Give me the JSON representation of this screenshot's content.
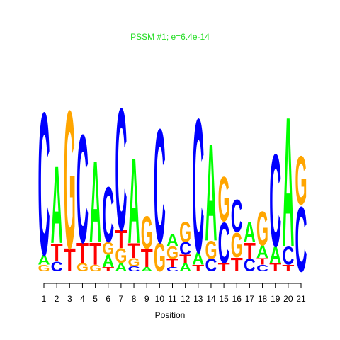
{
  "chart_data": {
    "type": "logo",
    "title": "PSSM #1; e=6.4e-14",
    "xlabel": "Position",
    "xticks": [
      1,
      2,
      3,
      4,
      5,
      6,
      7,
      8,
      9,
      10,
      11,
      12,
      13,
      14,
      15,
      16,
      17,
      18,
      19,
      20,
      21
    ],
    "ylim": [
      0,
      2
    ],
    "colors": {
      "A": "#00ff00",
      "C": "#0000ff",
      "G": "#ffa500",
      "T": "#ff0000"
    },
    "title_color": "#22dd22",
    "columns": [
      {
        "letters": [
          "G",
          "A",
          "C"
        ],
        "heights": [
          0.08,
          0.12,
          1.76
        ]
      },
      {
        "letters": [
          "C",
          "T",
          "A"
        ],
        "heights": [
          0.12,
          0.22,
          0.95
        ]
      },
      {
        "letters": [
          "T",
          "G"
        ],
        "heights": [
          0.28,
          1.7
        ]
      },
      {
        "letters": [
          "G",
          "T",
          "C"
        ],
        "heights": [
          0.1,
          0.25,
          1.33
        ]
      },
      {
        "letters": [
          "G",
          "T",
          "A"
        ],
        "heights": [
          0.08,
          0.27,
          1.0
        ]
      },
      {
        "letters": [
          "T",
          "A",
          "G",
          "C"
        ],
        "heights": [
          0.05,
          0.15,
          0.15,
          0.68
        ]
      },
      {
        "letters": [
          "A",
          "G",
          "T",
          "C"
        ],
        "heights": [
          0.1,
          0.18,
          0.22,
          1.5
        ]
      },
      {
        "letters": [
          "C",
          "G",
          "T",
          "A"
        ],
        "heights": [
          0.06,
          0.1,
          0.18,
          1.05
        ]
      },
      {
        "letters": [
          "A",
          "T",
          "G"
        ],
        "heights": [
          0.05,
          0.22,
          0.4
        ]
      },
      {
        "letters": [
          "G",
          "C"
        ],
        "heights": [
          0.35,
          1.4
        ]
      },
      {
        "letters": [
          "C",
          "T",
          "G",
          "A"
        ],
        "heights": [
          0.05,
          0.1,
          0.15,
          0.15
        ]
      },
      {
        "letters": [
          "A",
          "T",
          "C",
          "G"
        ],
        "heights": [
          0.1,
          0.1,
          0.15,
          0.25
        ]
      },
      {
        "letters": [
          "T",
          "A",
          "C"
        ],
        "heights": [
          0.08,
          0.15,
          1.65
        ]
      },
      {
        "letters": [
          "C",
          "G",
          "A"
        ],
        "heights": [
          0.15,
          0.22,
          1.2
        ]
      },
      {
        "letters": [
          "T",
          "C",
          "G"
        ],
        "heights": [
          0.1,
          0.5,
          0.55
        ]
      },
      {
        "letters": [
          "T",
          "G",
          "C"
        ],
        "heights": [
          0.17,
          0.3,
          0.4
        ]
      },
      {
        "letters": [
          "C",
          "T",
          "A"
        ],
        "heights": [
          0.15,
          0.2,
          0.25
        ]
      },
      {
        "letters": [
          "C",
          "T",
          "A",
          "G"
        ],
        "heights": [
          0.08,
          0.08,
          0.15,
          0.42
        ]
      },
      {
        "letters": [
          "T",
          "A",
          "C"
        ],
        "heights": [
          0.1,
          0.2,
          1.14
        ]
      },
      {
        "letters": [
          "T",
          "C",
          "A"
        ],
        "heights": [
          0.08,
          0.22,
          1.6
        ]
      },
      {
        "letters": [
          "C",
          "G"
        ],
        "heights": [
          0.8,
          0.6
        ]
      }
    ]
  }
}
